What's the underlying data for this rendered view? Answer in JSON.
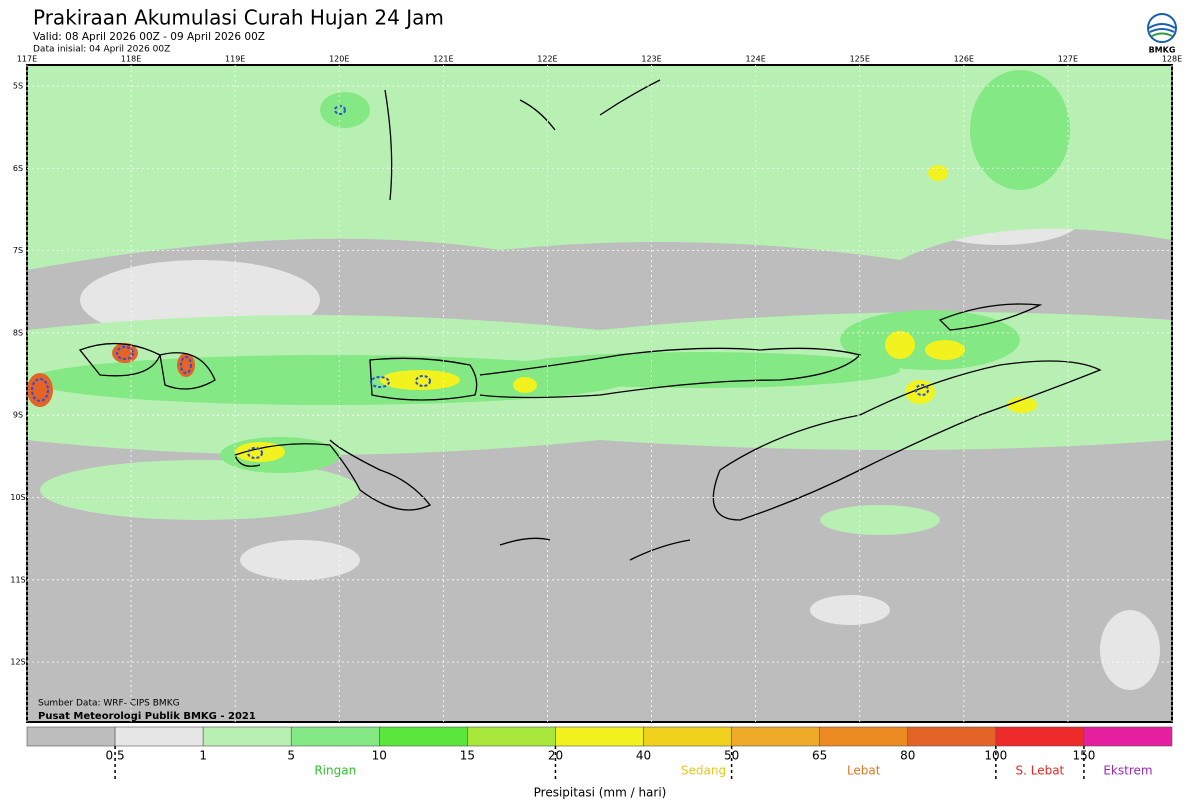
{
  "header": {
    "title": "Prakiraan Akumulasi Curah Hujan 24 Jam",
    "valid": "Valid: 08 April 2026 00Z - 09 April 2026 00Z",
    "initial": "Data inisial: 04 April 2026 00Z",
    "logo": "BMKG"
  },
  "map": {
    "longitudes": [
      "117E",
      "118E",
      "119E",
      "120E",
      "121E",
      "122E",
      "123E",
      "124E",
      "125E",
      "126E",
      "127E",
      "128E"
    ],
    "latitudes": [
      "5S",
      "6S",
      "7S",
      "8S",
      "9S",
      "10S",
      "11S",
      "12S"
    ],
    "source": "Sumber Data: WRF- CIPS BMKG",
    "credit": "Pusat Meteorologi Publik BMKG - 2021"
  },
  "legend": {
    "colors": [
      "#bdbdbd",
      "#e6e6e6",
      "#b8f0b4",
      "#84e884",
      "#5ae63c",
      "#a8e63c",
      "#f2f21e",
      "#f0d21e",
      "#eeaa28",
      "#ea8a20",
      "#e46428",
      "#ee2a2a",
      "#e61ea0"
    ],
    "ticks": [
      0.5,
      1,
      5,
      10,
      15,
      20,
      40,
      50,
      65,
      80,
      100,
      150
    ],
    "categories": [
      {
        "label": "Ringan",
        "color": "#2ec02e"
      },
      {
        "label": "Sedang",
        "color": "#e6c81e"
      },
      {
        "label": "Lebat",
        "color": "#e07820"
      },
      {
        "label": "S. Lebat",
        "color": "#e62828"
      },
      {
        "label": "Ekstrem",
        "color": "#a028b4"
      }
    ],
    "title": "Presipitasi (mm / hari)"
  }
}
